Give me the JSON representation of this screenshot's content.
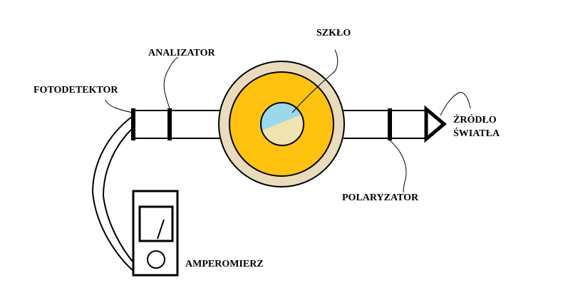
{
  "labels": {
    "szklo": "SZKŁO",
    "analizator": "ANALIZATOR",
    "fotodetektor": "FOTODETEKTOR",
    "zrodlo_line1": "ŹRÓDŁO",
    "zrodlo_line2": "ŚWIATŁA",
    "polaryzator": "POLARYZATOR",
    "amperomierz": "AMPEROMIERZ"
  },
  "colors": {
    "background": "#ffffff",
    "outline": "#000000",
    "outer_ring": "#e8dcbc",
    "yellow_disc": "#ffc20e",
    "glass_top": "#99d9ea",
    "glass_bottom": "#efe4b0"
  }
}
